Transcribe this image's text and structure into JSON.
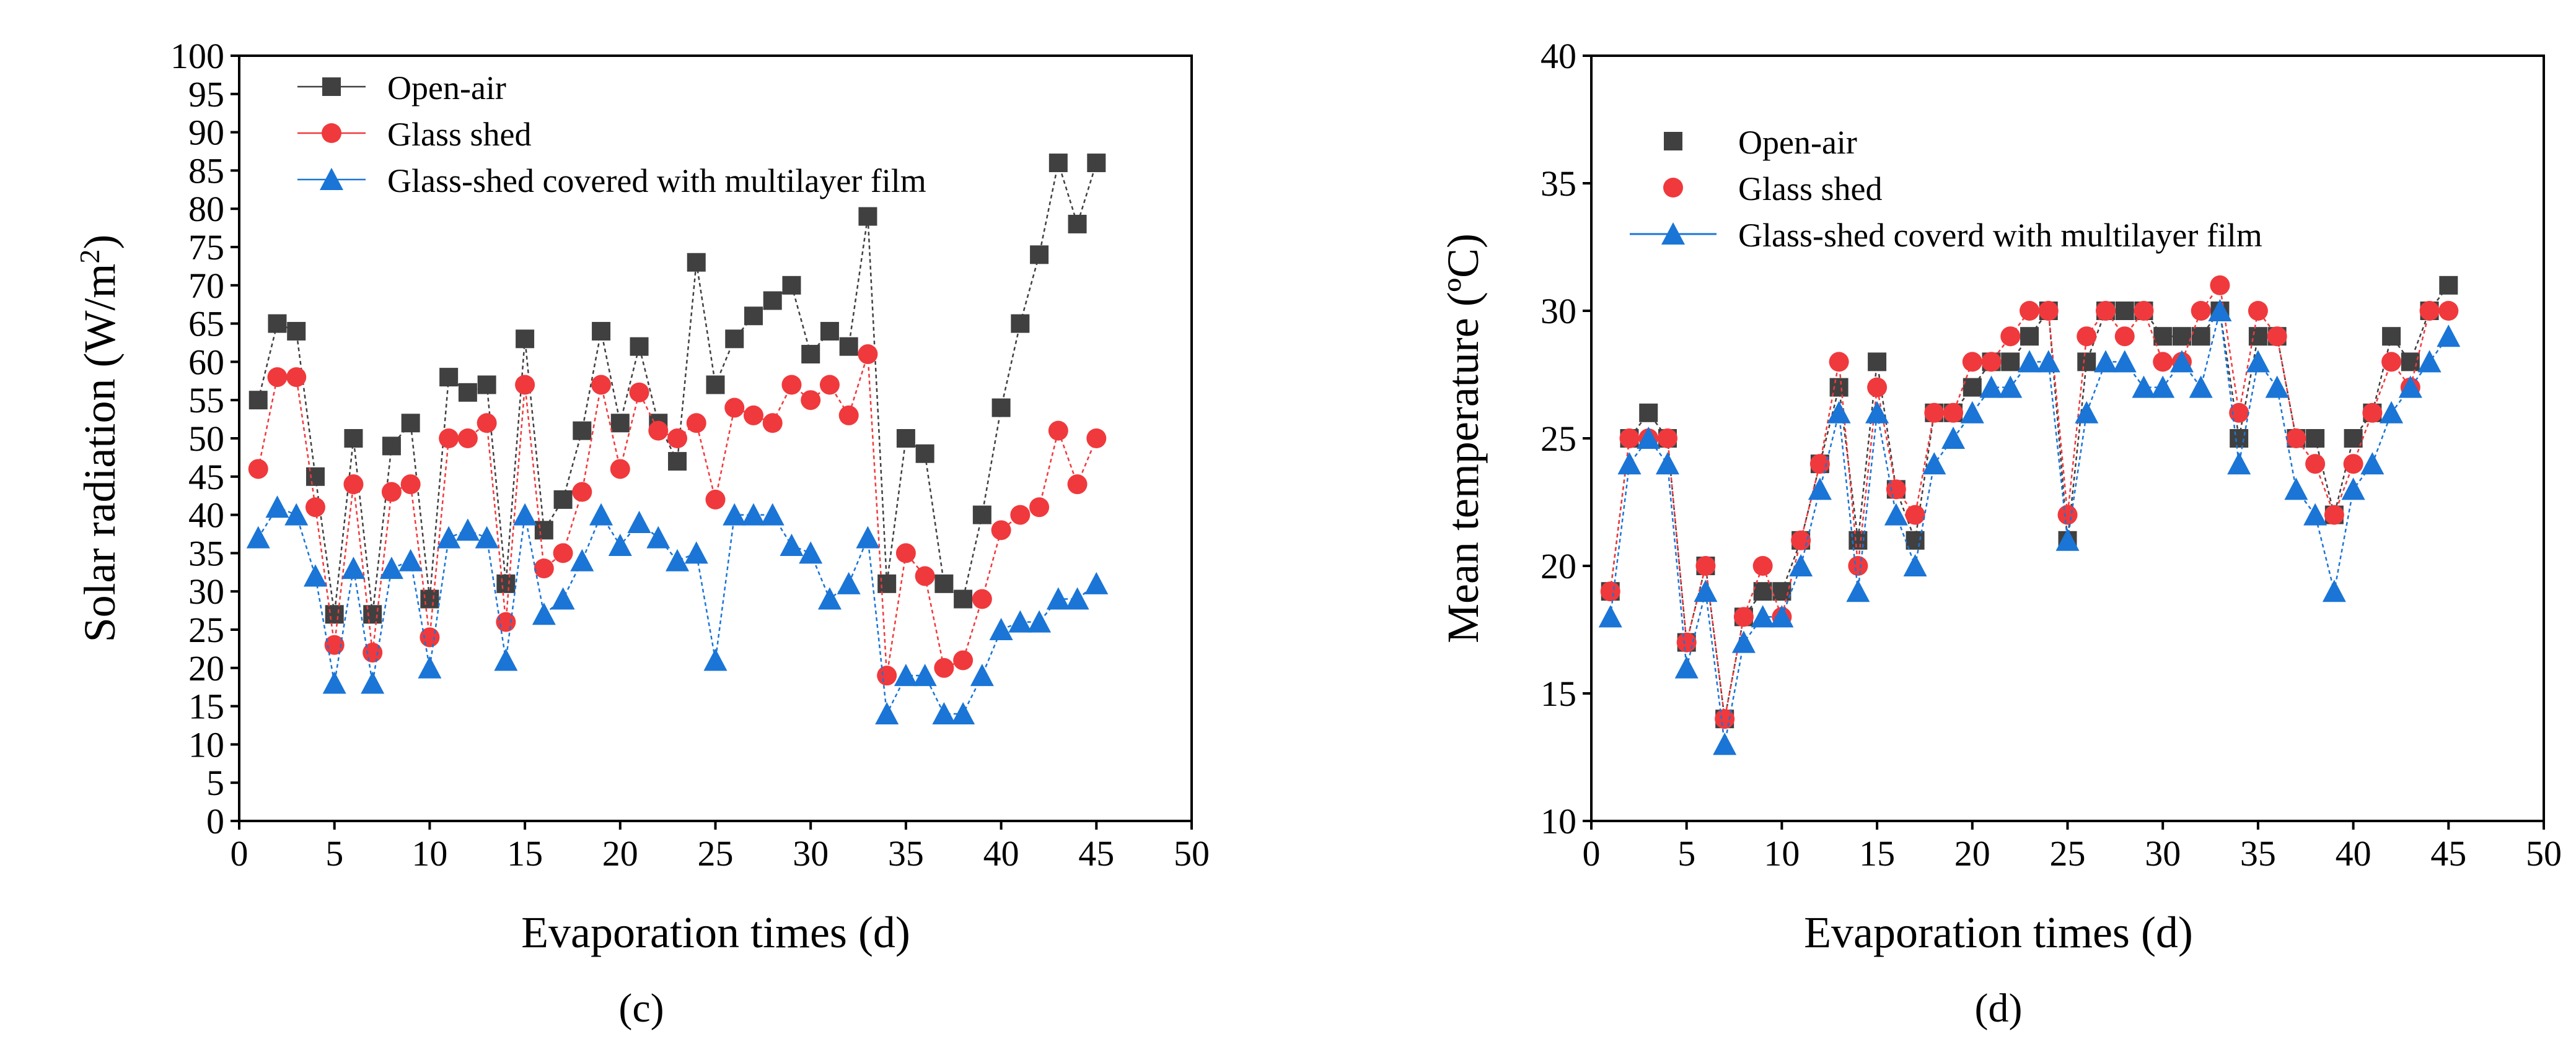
{
  "chart_data": [
    {
      "type": "line",
      "panel_label": "(c)",
      "title": "",
      "xlabel": "Evaporation times (d)",
      "ylabel_main": "Solar radiation (W/m",
      "ylabel_sup": "2",
      "ylabel_tail": ")",
      "xlim": [
        0,
        50
      ],
      "ylim": [
        0,
        100
      ],
      "xticks": [
        0,
        5,
        10,
        15,
        20,
        25,
        30,
        35,
        40,
        45,
        50
      ],
      "yticks": [
        0,
        5,
        10,
        15,
        20,
        25,
        30,
        35,
        40,
        45,
        50,
        55,
        60,
        65,
        70,
        75,
        80,
        85,
        90,
        95,
        100
      ],
      "grid": false,
      "legend_position": "top-left",
      "x": [
        1,
        2,
        3,
        4,
        5,
        6,
        7,
        8,
        9,
        10,
        11,
        12,
        13,
        14,
        15,
        16,
        17,
        18,
        19,
        20,
        21,
        22,
        23,
        24,
        25,
        26,
        27,
        28,
        29,
        30,
        31,
        32,
        33,
        34,
        35,
        36,
        37,
        38,
        39,
        40,
        41,
        42,
        43,
        44,
        45
      ],
      "series": [
        {
          "name": "Open-air",
          "marker": "square",
          "color": "#404040",
          "values": [
            55,
            65,
            64,
            45,
            27,
            50,
            27,
            49,
            52,
            29,
            58,
            56,
            57,
            31,
            63,
            38,
            42,
            51,
            64,
            52,
            62,
            52,
            47,
            73,
            57,
            63,
            66,
            68,
            70,
            61,
            64,
            62,
            79,
            31,
            50,
            48,
            31,
            29,
            40,
            54,
            65,
            74,
            86,
            78,
            86
          ]
        },
        {
          "name": "Glass shed",
          "marker": "circle",
          "color": "#f0393c",
          "values": [
            46,
            58,
            58,
            41,
            23,
            44,
            22,
            43,
            44,
            24,
            50,
            50,
            52,
            26,
            57,
            33,
            35,
            43,
            57,
            46,
            56,
            51,
            50,
            52,
            42,
            54,
            53,
            52,
            57,
            55,
            57,
            53,
            61,
            19,
            35,
            32,
            20,
            21,
            29,
            38,
            40,
            41,
            51,
            44,
            50
          ]
        },
        {
          "name": "Glass-shed covered with multilayer film",
          "marker": "triangle",
          "color": "#1a75d6",
          "values": [
            37,
            41,
            40,
            32,
            18,
            33,
            18,
            33,
            34,
            20,
            37,
            38,
            37,
            21,
            40,
            27,
            29,
            34,
            40,
            36,
            39,
            37,
            34,
            35,
            21,
            40,
            40,
            40,
            36,
            35,
            29,
            31,
            37,
            14,
            19,
            19,
            14,
            14,
            19,
            25,
            26,
            26,
            29,
            29,
            31
          ]
        }
      ]
    },
    {
      "type": "line",
      "panel_label": "(d)",
      "title": "",
      "xlabel": "Evaporation times (d)",
      "ylabel": "Mean temperature (ºC)",
      "xlim": [
        0,
        50
      ],
      "ylim": [
        10,
        40
      ],
      "xticks": [
        0,
        5,
        10,
        15,
        20,
        25,
        30,
        35,
        40,
        45,
        50
      ],
      "yticks": [
        10,
        15,
        20,
        25,
        30,
        35,
        40
      ],
      "grid": false,
      "legend_position": "top-left",
      "x": [
        1,
        2,
        3,
        4,
        5,
        6,
        7,
        8,
        9,
        10,
        11,
        12,
        13,
        14,
        15,
        16,
        17,
        18,
        19,
        20,
        21,
        22,
        23,
        24,
        25,
        26,
        27,
        28,
        29,
        30,
        31,
        32,
        33,
        34,
        35,
        36,
        37,
        38,
        39,
        40,
        41,
        42,
        43,
        44,
        45
      ],
      "series": [
        {
          "name": "Open-air",
          "marker": "square",
          "color": "#404040",
          "values": [
            19,
            25,
            26,
            25,
            17,
            20,
            14,
            18,
            19,
            19,
            21,
            24,
            27,
            21,
            28,
            23,
            21,
            26,
            26,
            27,
            28,
            28,
            29,
            30,
            21,
            28,
            30,
            30,
            30,
            29,
            29,
            29,
            30,
            25,
            29,
            29,
            25,
            25,
            22,
            25,
            26,
            29,
            28,
            30,
            31
          ]
        },
        {
          "name": "Glass shed",
          "marker": "circle",
          "color": "#f0393c",
          "values": [
            19,
            25,
            25,
            25,
            17,
            20,
            14,
            18,
            20,
            18,
            21,
            24,
            28,
            20,
            27,
            23,
            22,
            26,
            26,
            28,
            28,
            29,
            30,
            30,
            22,
            29,
            30,
            29,
            30,
            28,
            28,
            30,
            31,
            26,
            30,
            29,
            25,
            24,
            22,
            24,
            26,
            28,
            27,
            30,
            30
          ]
        },
        {
          "name": "Glass-shed coverd with multilayer film",
          "marker": "triangle",
          "color": "#1a75d6",
          "values": [
            18,
            24,
            25,
            24,
            16,
            19,
            13,
            17,
            18,
            18,
            20,
            23,
            26,
            19,
            26,
            22,
            20,
            24,
            25,
            26,
            27,
            27,
            28,
            28,
            21,
            26,
            28,
            28,
            27,
            27,
            28,
            27,
            30,
            24,
            28,
            27,
            23,
            22,
            19,
            23,
            24,
            26,
            27,
            28,
            29
          ]
        }
      ]
    }
  ]
}
